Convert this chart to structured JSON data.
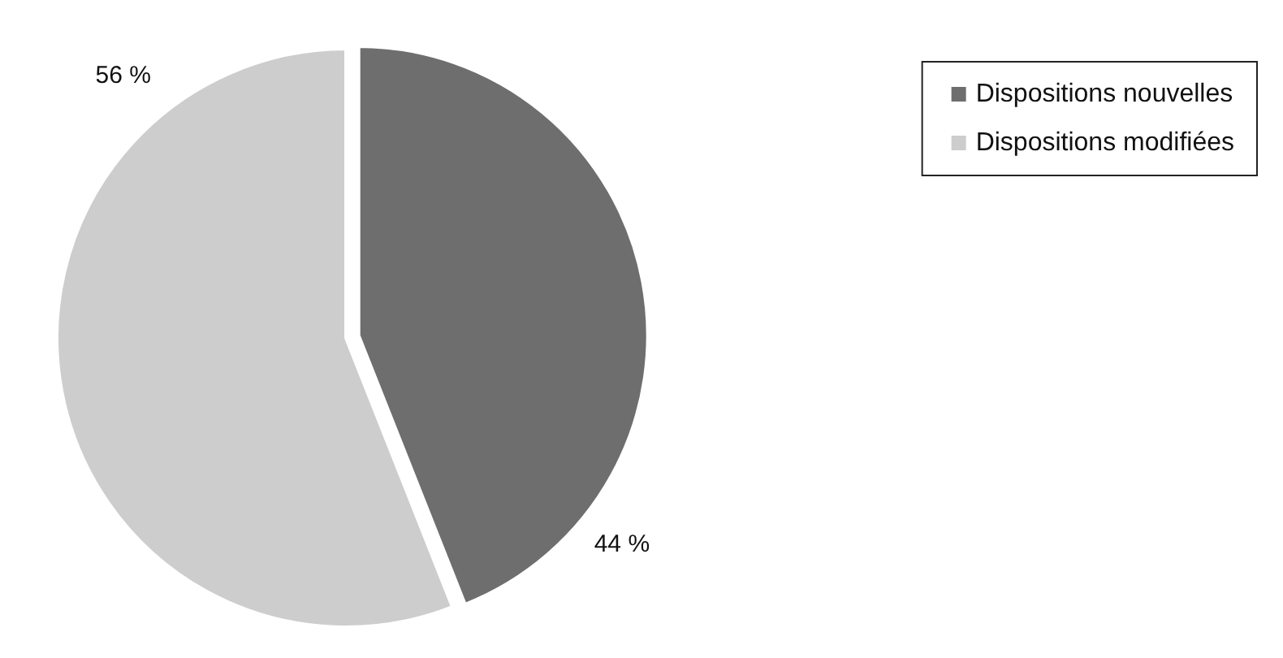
{
  "chart_data": {
    "type": "pie",
    "categories": [
      "Dispositions nouvelles",
      "Dispositions modifiées"
    ],
    "values": [
      44,
      56
    ],
    "colors": [
      "#6e6e6e",
      "#cdcdcd"
    ],
    "value_labels": [
      "44 %",
      "56 %"
    ],
    "legend": "top right"
  }
}
